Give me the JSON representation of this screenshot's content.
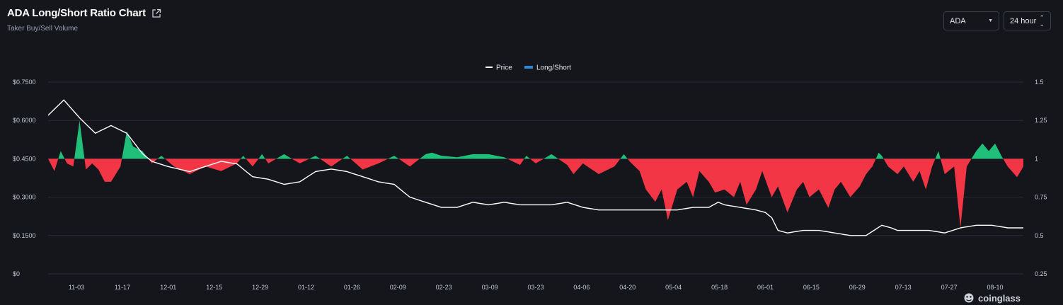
{
  "header": {
    "title": "ADA Long/Short Ratio Chart",
    "subtitle": "Taker Buy/Sell Volume"
  },
  "controls": {
    "coin": "ADA",
    "interval": "24 hour"
  },
  "watermark": "coinglass",
  "colors": {
    "background": "#14161c",
    "price_line": "#ffffff",
    "legend_long_short": "#2e86de",
    "above_baseline": "#20c07a",
    "below_baseline": "#f23645",
    "grid": "#2a2d35"
  },
  "chart_data": {
    "type": "line+baseline-area",
    "legend": [
      "Price",
      "Long/Short"
    ],
    "x_ticks": [
      "11-03",
      "11-17",
      "12-01",
      "12-15",
      "12-29",
      "01-12",
      "01-26",
      "02-09",
      "02-23",
      "03-09",
      "03-23",
      "04-06",
      "04-20",
      "05-04",
      "05-18",
      "06-01",
      "06-15",
      "06-29",
      "07-13",
      "07-27",
      "08-10"
    ],
    "y_left": {
      "ticks": [
        "$0.7500",
        "$0.6000",
        "$0.4500",
        "$0.3000",
        "$0.1500",
        "$0"
      ],
      "range": [
        0,
        0.75
      ]
    },
    "y_right": {
      "ticks": [
        "1.5",
        "1.25",
        "1",
        "0.75",
        "0.5",
        "0.25"
      ],
      "range": [
        0.25,
        1.5
      ],
      "baseline": 1
    },
    "series": [
      {
        "name": "Price",
        "anchors": [
          [
            0,
            0.62
          ],
          [
            5,
            0.68
          ],
          [
            10,
            0.61
          ],
          [
            15,
            0.55
          ],
          [
            20,
            0.58
          ],
          [
            25,
            0.55
          ],
          [
            30,
            0.47
          ],
          [
            33,
            0.44
          ],
          [
            38,
            0.42
          ],
          [
            45,
            0.4
          ],
          [
            50,
            0.42
          ],
          [
            55,
            0.44
          ],
          [
            60,
            0.43
          ],
          [
            65,
            0.38
          ],
          [
            70,
            0.37
          ],
          [
            75,
            0.35
          ],
          [
            80,
            0.36
          ],
          [
            85,
            0.4
          ],
          [
            90,
            0.41
          ],
          [
            95,
            0.4
          ],
          [
            100,
            0.38
          ],
          [
            105,
            0.36
          ],
          [
            110,
            0.35
          ],
          [
            115,
            0.3
          ],
          [
            120,
            0.28
          ],
          [
            125,
            0.26
          ],
          [
            130,
            0.26
          ],
          [
            135,
            0.28
          ],
          [
            140,
            0.27
          ],
          [
            145,
            0.28
          ],
          [
            150,
            0.27
          ],
          [
            155,
            0.27
          ],
          [
            160,
            0.27
          ],
          [
            165,
            0.28
          ],
          [
            170,
            0.26
          ],
          [
            175,
            0.25
          ],
          [
            180,
            0.25
          ],
          [
            185,
            0.25
          ],
          [
            190,
            0.25
          ],
          [
            195,
            0.25
          ],
          [
            200,
            0.25
          ],
          [
            205,
            0.26
          ],
          [
            210,
            0.26
          ],
          [
            213,
            0.28
          ],
          [
            215,
            0.27
          ],
          [
            220,
            0.26
          ],
          [
            225,
            0.25
          ],
          [
            228,
            0.24
          ],
          [
            230,
            0.22
          ],
          [
            232,
            0.17
          ],
          [
            235,
            0.16
          ],
          [
            240,
            0.17
          ],
          [
            245,
            0.17
          ],
          [
            250,
            0.16
          ],
          [
            255,
            0.15
          ],
          [
            260,
            0.15
          ],
          [
            265,
            0.19
          ],
          [
            268,
            0.18
          ],
          [
            270,
            0.17
          ],
          [
            275,
            0.17
          ],
          [
            280,
            0.17
          ],
          [
            285,
            0.16
          ],
          [
            290,
            0.18
          ],
          [
            295,
            0.19
          ],
          [
            300,
            0.19
          ],
          [
            305,
            0.18
          ],
          [
            310,
            0.18
          ]
        ]
      },
      {
        "name": "Long/Short",
        "anchors": [
          [
            0,
            1
          ],
          [
            2,
            0.92
          ],
          [
            4,
            1.05
          ],
          [
            6,
            0.97
          ],
          [
            8,
            0.95
          ],
          [
            10,
            1.25
          ],
          [
            12,
            0.93
          ],
          [
            14,
            0.97
          ],
          [
            16,
            0.93
          ],
          [
            18,
            0.85
          ],
          [
            20,
            0.85
          ],
          [
            23,
            0.95
          ],
          [
            25,
            1.18
          ],
          [
            27,
            1.08
          ],
          [
            30,
            1.05
          ],
          [
            33,
            0.97
          ],
          [
            36,
            1.02
          ],
          [
            40,
            0.95
          ],
          [
            45,
            0.9
          ],
          [
            50,
            0.95
          ],
          [
            55,
            0.92
          ],
          [
            60,
            0.97
          ],
          [
            62,
            1.02
          ],
          [
            65,
            0.95
          ],
          [
            68,
            1.03
          ],
          [
            70,
            0.97
          ],
          [
            75,
            1.03
          ],
          [
            80,
            0.97
          ],
          [
            85,
            1.02
          ],
          [
            90,
            0.95
          ],
          [
            95,
            1.02
          ],
          [
            100,
            0.93
          ],
          [
            105,
            0.97
          ],
          [
            110,
            1.02
          ],
          [
            115,
            0.95
          ],
          [
            120,
            1.03
          ],
          [
            122,
            1.04
          ],
          [
            125,
            1.02
          ],
          [
            130,
            1.01
          ],
          [
            135,
            1.03
          ],
          [
            140,
            1.03
          ],
          [
            145,
            1.01
          ],
          [
            150,
            0.96
          ],
          [
            152,
            1.02
          ],
          [
            155,
            0.97
          ],
          [
            160,
            1.03
          ],
          [
            165,
            0.96
          ],
          [
            167,
            0.9
          ],
          [
            170,
            0.97
          ],
          [
            175,
            0.9
          ],
          [
            180,
            0.95
          ],
          [
            183,
            1.03
          ],
          [
            185,
            0.98
          ],
          [
            188,
            0.92
          ],
          [
            190,
            0.8
          ],
          [
            193,
            0.72
          ],
          [
            195,
            0.8
          ],
          [
            197,
            0.6
          ],
          [
            200,
            0.8
          ],
          [
            203,
            0.85
          ],
          [
            205,
            0.75
          ],
          [
            207,
            0.92
          ],
          [
            210,
            0.85
          ],
          [
            212,
            0.78
          ],
          [
            215,
            0.8
          ],
          [
            218,
            0.75
          ],
          [
            220,
            0.85
          ],
          [
            222,
            0.7
          ],
          [
            225,
            0.8
          ],
          [
            227,
            0.92
          ],
          [
            230,
            0.75
          ],
          [
            232,
            0.82
          ],
          [
            235,
            0.65
          ],
          [
            238,
            0.8
          ],
          [
            240,
            0.85
          ],
          [
            242,
            0.75
          ],
          [
            245,
            0.8
          ],
          [
            248,
            0.68
          ],
          [
            250,
            0.8
          ],
          [
            252,
            0.85
          ],
          [
            255,
            0.75
          ],
          [
            258,
            0.82
          ],
          [
            260,
            0.9
          ],
          [
            262,
            0.95
          ],
          [
            264,
            1.04
          ],
          [
            265,
            1.02
          ],
          [
            267,
            0.95
          ],
          [
            270,
            0.9
          ],
          [
            272,
            0.95
          ],
          [
            275,
            0.85
          ],
          [
            277,
            0.92
          ],
          [
            279,
            0.8
          ],
          [
            281,
            0.95
          ],
          [
            283,
            1.05
          ],
          [
            285,
            0.9
          ],
          [
            288,
            0.95
          ],
          [
            290,
            0.55
          ],
          [
            292,
            0.95
          ],
          [
            295,
            1.05
          ],
          [
            297,
            1.1
          ],
          [
            299,
            1.05
          ],
          [
            301,
            1.1
          ],
          [
            303,
            1.02
          ],
          [
            305,
            0.95
          ],
          [
            308,
            0.88
          ],
          [
            310,
            0.95
          ]
        ]
      }
    ]
  }
}
